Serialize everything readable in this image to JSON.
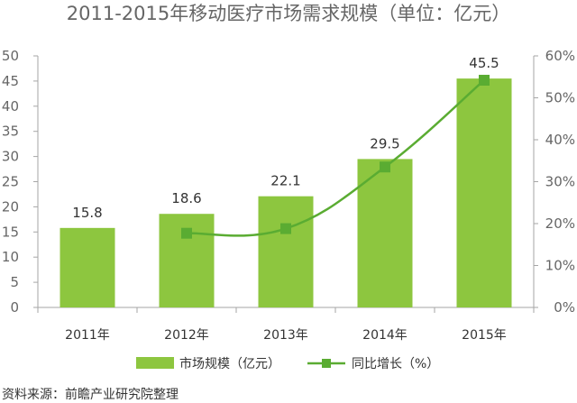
{
  "chart_data": {
    "type": "bar",
    "title": "2011-2015年移动医疗市场需求规模（单位：亿元）",
    "categories": [
      "2011年",
      "2012年",
      "2013年",
      "2014年",
      "2015年"
    ],
    "series": [
      {
        "name": "市场规模（亿元）",
        "type": "bar",
        "axis": "left",
        "color": "#8dc63f",
        "values": [
          15.8,
          18.6,
          22.1,
          29.5,
          45.5
        ],
        "labels": [
          "15.8",
          "18.6",
          "22.1",
          "29.5",
          "45.5"
        ]
      },
      {
        "name": "同比增长（%）",
        "type": "line",
        "axis": "right",
        "color": "#5aac32",
        "values": [
          null,
          17.7,
          18.8,
          33.5,
          54.2
        ]
      }
    ],
    "ylim": [
      0,
      50
    ],
    "yticks": [
      "0",
      "5",
      "10",
      "15",
      "20",
      "25",
      "30",
      "35",
      "40",
      "45",
      "50"
    ],
    "y2lim": [
      0,
      60
    ],
    "y2ticks": [
      "0%",
      "10%",
      "20%",
      "30%",
      "40%",
      "50%",
      "60%"
    ],
    "legend": "bottom",
    "grid": false
  },
  "source": "资料来源：前瞻产业研究院整理"
}
